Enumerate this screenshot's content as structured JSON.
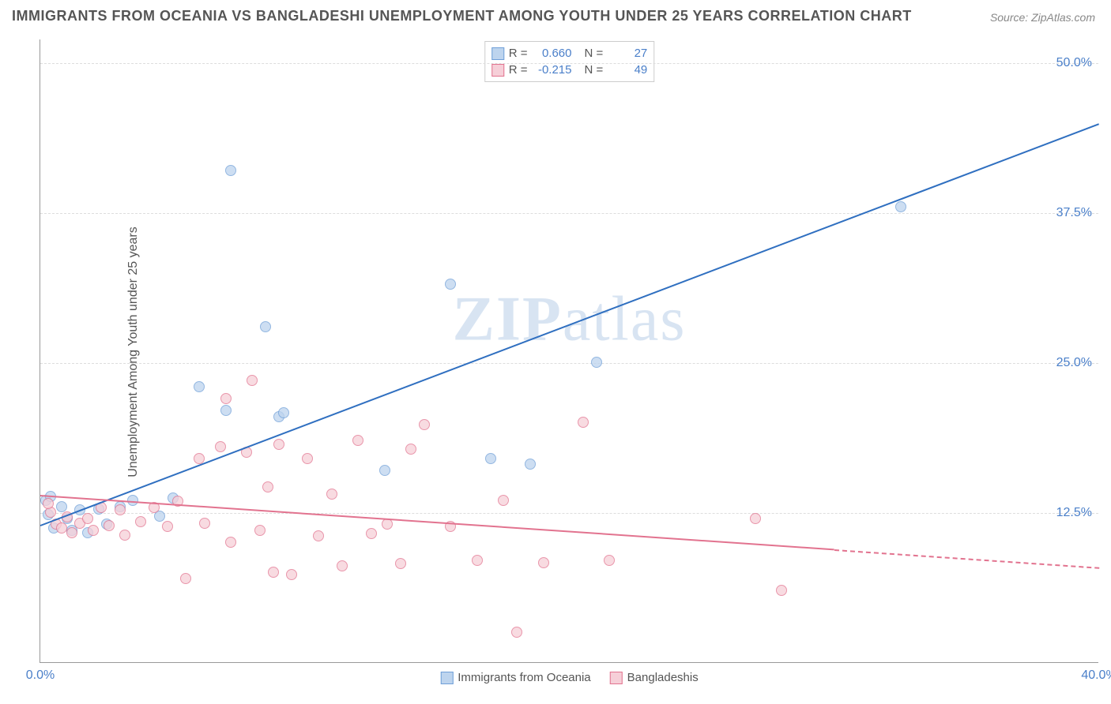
{
  "title": "IMMIGRANTS FROM OCEANIA VS BANGLADESHI UNEMPLOYMENT AMONG YOUTH UNDER 25 YEARS CORRELATION CHART",
  "source": "Source: ZipAtlas.com",
  "ylabel": "Unemployment Among Youth under 25 years",
  "watermark_a": "ZIP",
  "watermark_b": "atlas",
  "chart": {
    "type": "scatter",
    "background_color": "#ffffff",
    "grid_color": "#dddddd",
    "axis_color": "#999999",
    "text_color": "#555555",
    "value_color": "#4a7fc9",
    "xlim": [
      0,
      40
    ],
    "ylim": [
      0,
      52
    ],
    "yticks": [
      {
        "value": 12.5,
        "label": "12.5%"
      },
      {
        "value": 25.0,
        "label": "25.0%"
      },
      {
        "value": 37.5,
        "label": "37.5%"
      },
      {
        "value": 50.0,
        "label": "50.0%"
      }
    ],
    "xticks": [
      {
        "value": 0,
        "label": "0.0%"
      },
      {
        "value": 40,
        "label": "40.0%"
      }
    ],
    "series": [
      {
        "name": "Immigrants from Oceania",
        "fill": "#bdd4ee",
        "stroke": "#6f9fd8",
        "R": "0.660",
        "N": "27",
        "trend": {
          "x1": 0,
          "y1": 11.5,
          "x2": 40,
          "y2": 45,
          "color": "#2f6fc0",
          "solid_to_x": 40
        },
        "points": [
          [
            0.3,
            12.3
          ],
          [
            0.5,
            11.2
          ],
          [
            0.8,
            13.0
          ],
          [
            1.0,
            12.0
          ],
          [
            1.2,
            11.0
          ],
          [
            1.5,
            12.7
          ],
          [
            1.8,
            10.8
          ],
          [
            2.2,
            12.8
          ],
          [
            2.5,
            11.5
          ],
          [
            3.0,
            13.0
          ],
          [
            3.5,
            13.5
          ],
          [
            4.5,
            12.2
          ],
          [
            5.0,
            13.7
          ],
          [
            6.0,
            23.0
          ],
          [
            7.0,
            21.0
          ],
          [
            7.2,
            41.0
          ],
          [
            8.5,
            28.0
          ],
          [
            9.0,
            20.5
          ],
          [
            9.2,
            20.8
          ],
          [
            13.0,
            16.0
          ],
          [
            15.5,
            31.5
          ],
          [
            17.0,
            17.0
          ],
          [
            18.5,
            16.5
          ],
          [
            21.0,
            25.0
          ],
          [
            32.5,
            38.0
          ],
          [
            0.2,
            13.5
          ],
          [
            0.4,
            13.8
          ]
        ]
      },
      {
        "name": "Bangladeshis",
        "fill": "#f6cfd8",
        "stroke": "#e2738f",
        "R": "-0.215",
        "N": "49",
        "trend": {
          "x1": 0,
          "y1": 14.0,
          "x2": 40,
          "y2": 8.0,
          "color": "#e2738f",
          "solid_to_x": 30
        },
        "points": [
          [
            0.4,
            12.5
          ],
          [
            0.6,
            11.5
          ],
          [
            0.8,
            11.2
          ],
          [
            1.0,
            12.1
          ],
          [
            1.2,
            10.8
          ],
          [
            1.5,
            11.6
          ],
          [
            1.8,
            12.0
          ],
          [
            2.0,
            11.0
          ],
          [
            2.3,
            12.9
          ],
          [
            2.6,
            11.4
          ],
          [
            3.0,
            12.7
          ],
          [
            3.2,
            10.6
          ],
          [
            3.8,
            11.7
          ],
          [
            4.3,
            12.9
          ],
          [
            4.8,
            11.3
          ],
          [
            5.2,
            13.4
          ],
          [
            5.5,
            7.0
          ],
          [
            6.0,
            17.0
          ],
          [
            6.2,
            11.6
          ],
          [
            6.8,
            18.0
          ],
          [
            7.0,
            22.0
          ],
          [
            7.2,
            10.0
          ],
          [
            7.8,
            17.5
          ],
          [
            8.0,
            23.5
          ],
          [
            8.3,
            11.0
          ],
          [
            8.6,
            14.6
          ],
          [
            8.8,
            7.5
          ],
          [
            9.0,
            18.2
          ],
          [
            9.5,
            7.3
          ],
          [
            10.1,
            17.0
          ],
          [
            10.5,
            10.5
          ],
          [
            11.0,
            14.0
          ],
          [
            11.4,
            8.0
          ],
          [
            12.0,
            18.5
          ],
          [
            12.5,
            10.7
          ],
          [
            13.1,
            11.5
          ],
          [
            13.6,
            8.2
          ],
          [
            14.0,
            17.8
          ],
          [
            14.5,
            19.8
          ],
          [
            15.5,
            11.3
          ],
          [
            16.5,
            8.5
          ],
          [
            17.5,
            13.5
          ],
          [
            18.0,
            2.5
          ],
          [
            19.0,
            8.3
          ],
          [
            20.5,
            20.0
          ],
          [
            21.5,
            8.5
          ],
          [
            27.0,
            12.0
          ],
          [
            28.0,
            6.0
          ],
          [
            0.3,
            13.2
          ]
        ]
      }
    ]
  }
}
